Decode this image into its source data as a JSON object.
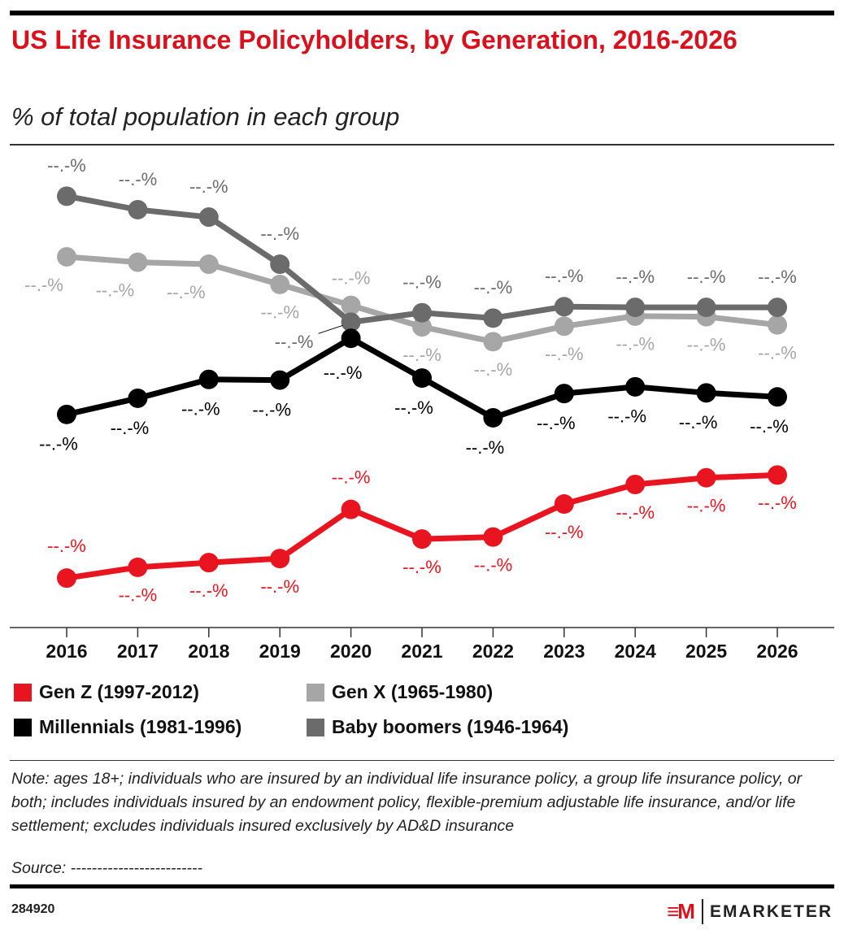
{
  "chart_data": {
    "type": "line",
    "title": "US Life Insurance Policyholders, by Generation, 2016-2026",
    "subtitle": "% of total population in each group",
    "categories": [
      "2016",
      "2017",
      "2018",
      "2019",
      "2020",
      "2021",
      "2022",
      "2023",
      "2024",
      "2025",
      "2026"
    ],
    "ylim": [
      0,
      70
    ],
    "series": [
      {
        "name": "Gen Z (1997-2012)",
        "color": "#e8141f",
        "values": [
          7.1,
          8.7,
          9.4,
          10.0,
          17.3,
          12.9,
          13.2,
          18.1,
          21.0,
          22.0,
          22.4
        ],
        "value_labels": [
          "--.-%",
          "--.-%",
          "--.-%",
          "--.-%",
          "--.-%",
          "--.-%",
          "--.-%",
          "--.-%",
          "--.-%",
          "--.-%",
          "--.-%"
        ]
      },
      {
        "name": "Gen X (1965-1980)",
        "color": "#a6a6a6",
        "values": [
          54.8,
          54.0,
          53.7,
          50.7,
          47.6,
          44.4,
          42.2,
          44.5,
          46.0,
          45.9,
          44.7
        ],
        "value_labels": [
          "--.-%",
          "--.-%",
          "--.-%",
          "--.-%",
          "--.-%",
          "--.-%",
          "--.-%",
          "--.-%",
          "--.-%",
          "--.-%",
          "--.-%"
        ]
      },
      {
        "name": "Millennials (1981-1996)",
        "color": "#000000",
        "values": [
          31.4,
          33.8,
          36.6,
          36.5,
          42.7,
          36.8,
          30.9,
          34.5,
          35.5,
          34.6,
          34.0
        ],
        "value_labels": [
          "--.-%",
          "--.-%",
          "--.-%",
          "--.-%",
          "--.-%",
          "--.-%",
          "--.-%",
          "--.-%",
          "--.-%",
          "--.-%",
          "--.-%"
        ]
      },
      {
        "name": "Baby boomers (1946-1964)",
        "color": "#6b6b6b",
        "values": [
          63.8,
          61.8,
          60.7,
          53.7,
          45.1,
          46.5,
          45.7,
          47.4,
          47.3,
          47.3,
          47.3
        ],
        "value_labels": [
          "--.-%",
          "--.-%",
          "--.-%",
          "--.-%",
          "--.-%",
          "--.-%",
          "--.-%",
          "--.-%",
          "--.-%",
          "--.-%",
          "--.-%"
        ]
      }
    ],
    "note": "Note: ages 18+; individuals who are insured by an individual life insurance policy, a group life insurance policy, or both; includes individuals insured by an endowment policy, flexible-premium adjustable life insurance, and/or life settlement; excludes individuals insured exclusively by AD&D insurance",
    "source": "Source: -------------------------",
    "chart_id": "284920",
    "brand": "EMARKETER"
  }
}
